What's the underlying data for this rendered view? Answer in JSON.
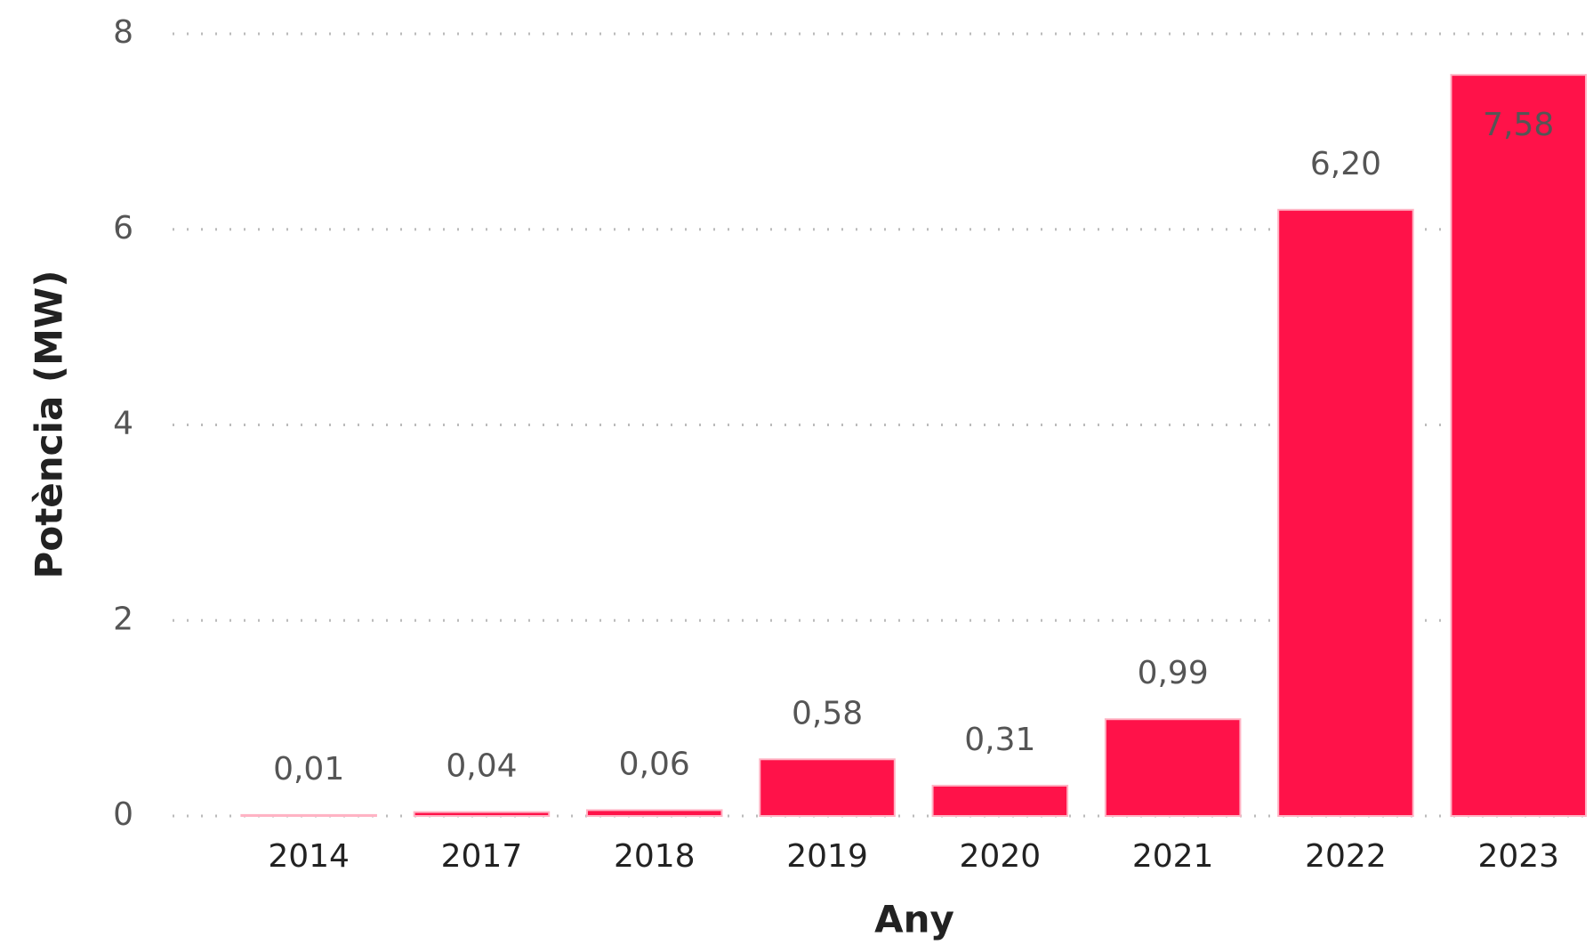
{
  "chart_data": {
    "type": "bar",
    "x_label": "Any",
    "y_label": "Potència (MW)",
    "categories": [
      "2014",
      "2017",
      "2018",
      "2019",
      "2020",
      "2021",
      "2022",
      "2023"
    ],
    "values": [
      0.01,
      0.04,
      0.06,
      0.58,
      0.31,
      0.99,
      6.2,
      7.58
    ],
    "value_labels": [
      "0,01",
      "0,04",
      "0,06",
      "0,58",
      "0,31",
      "0,99",
      "6,20",
      "7,58"
    ],
    "color": "#ff1249",
    "ylim": [
      0,
      8
    ],
    "yticks": [
      0,
      2,
      4,
      6,
      8
    ],
    "grid": true
  }
}
